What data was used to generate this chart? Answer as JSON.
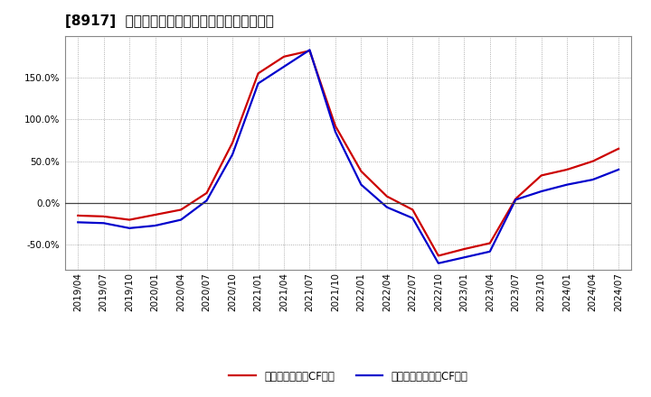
{
  "title": "[8917]  有利子負債キャッシュフロー比率の推移",
  "legend_label_red": "有利子負債営業CF比率",
  "legend_label_blue": "有利子負債フリーCF比率",
  "line_colors": [
    "#cc0000",
    "#0000cc"
  ],
  "background_color": "#ffffff",
  "plot_bg_color": "#ffffff",
  "grid_color": "#999999",
  "x_labels": [
    "2019/04",
    "2019/07",
    "2019/10",
    "2020/01",
    "2020/04",
    "2020/07",
    "2020/10",
    "2021/01",
    "2021/04",
    "2021/07",
    "2021/10",
    "2022/01",
    "2022/04",
    "2022/07",
    "2022/10",
    "2023/01",
    "2023/04",
    "2023/07",
    "2023/10",
    "2024/01",
    "2024/04",
    "2024/07"
  ],
  "red_data": [
    -15.0,
    -16.0,
    -20.0,
    -14.0,
    -8.0,
    12.0,
    72.0,
    155.0,
    175.0,
    182.0,
    92.0,
    38.0,
    8.0,
    -8.0,
    -63.0,
    -55.0,
    -48.0,
    5.0,
    33.0,
    40.0,
    50.0,
    65.0
  ],
  "blue_data": [
    -23.0,
    -24.0,
    -30.0,
    -27.0,
    -20.0,
    3.0,
    58.0,
    143.0,
    163.0,
    183.0,
    85.0,
    22.0,
    -5.0,
    -18.0,
    -72.0,
    -65.0,
    -58.0,
    4.0,
    14.0,
    22.0,
    28.0,
    40.0
  ],
  "ylim": [
    -80,
    200
  ],
  "yticks": [
    -50.0,
    0.0,
    50.0,
    100.0,
    150.0
  ],
  "linewidth": 1.6,
  "title_fontsize": 11,
  "tick_fontsize": 7.5,
  "legend_fontsize": 8.5
}
